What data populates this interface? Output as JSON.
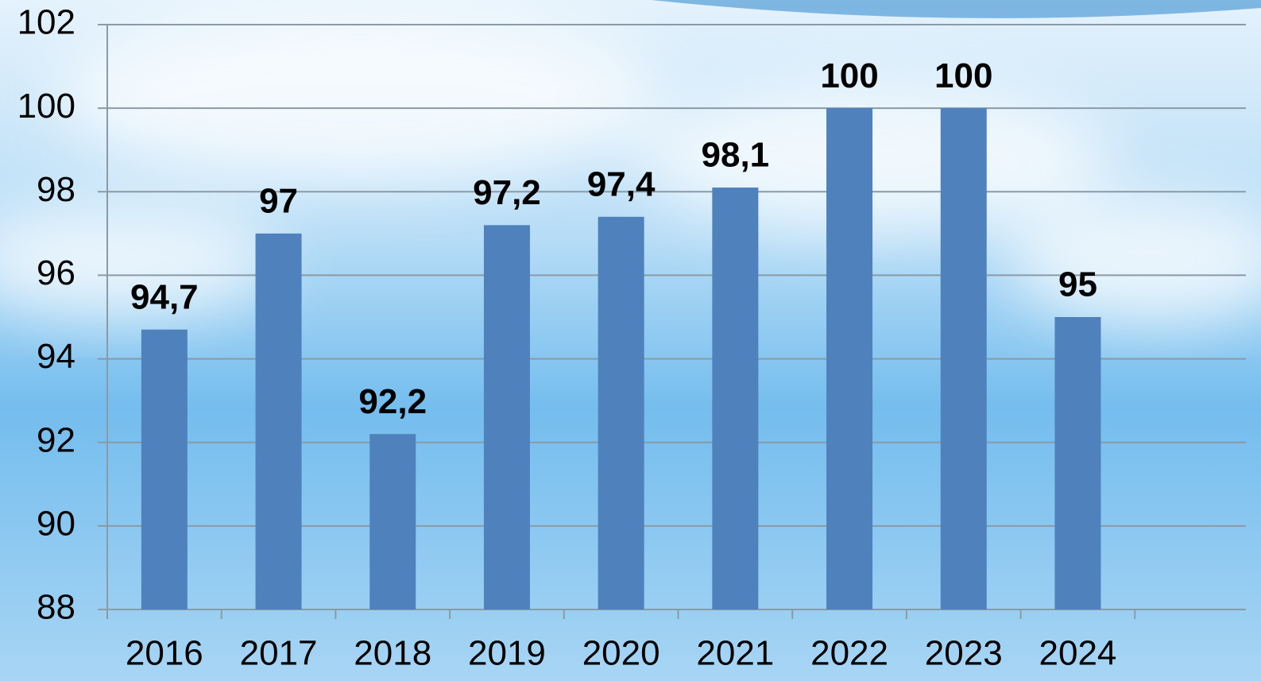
{
  "chart_data": {
    "type": "bar",
    "categories": [
      "2016",
      "2017",
      "2018",
      "2019",
      "2020",
      "2021",
      "2022",
      "2023",
      "2024"
    ],
    "values": [
      94.7,
      97,
      92.2,
      97.2,
      97.4,
      98.1,
      100,
      100,
      95
    ],
    "value_labels": [
      "94,7",
      "97",
      "92,2",
      "97,2",
      "97,4",
      "98,1",
      "100",
      "100",
      "95"
    ],
    "color": "#4f81bd",
    "ylim": [
      88,
      102
    ],
    "yticks": [
      88,
      90,
      92,
      94,
      96,
      98,
      100,
      102
    ],
    "grid": true
  }
}
